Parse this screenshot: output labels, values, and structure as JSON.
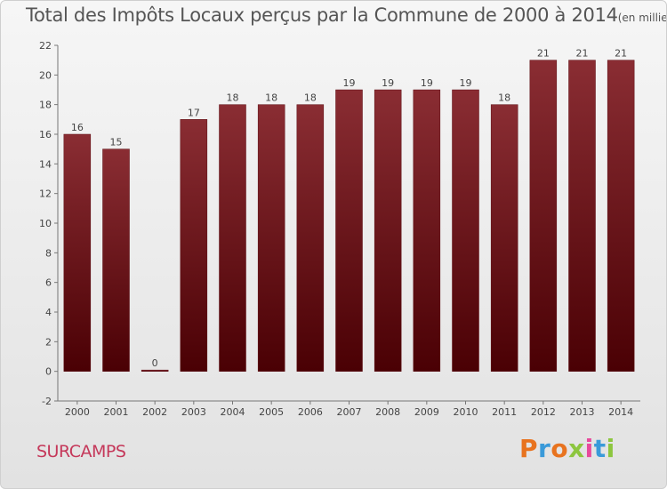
{
  "chart_data": {
    "type": "bar",
    "title": "Total des Impôts Locaux perçus par la Commune de 2000 à 2014",
    "unit": "(en milliers d'€)",
    "categories": [
      "2000",
      "2001",
      "2002",
      "2003",
      "2004",
      "2005",
      "2006",
      "2007",
      "2008",
      "2009",
      "2010",
      "2011",
      "2012",
      "2013",
      "2014"
    ],
    "values": [
      16,
      15,
      0,
      17,
      18,
      18,
      18,
      19,
      19,
      19,
      19,
      18,
      21,
      21,
      21
    ],
    "ylim": [
      -2,
      22
    ],
    "yticks": [
      -2,
      0,
      2,
      4,
      6,
      8,
      10,
      12,
      14,
      16,
      18,
      20,
      22
    ],
    "xlabel": "",
    "ylabel": "",
    "grid": false,
    "bar_color": "#7a1e24"
  },
  "footer": {
    "commune": "SURCAMPS",
    "brand": "Proxiti",
    "brand_colors": [
      "#e8731f",
      "#3a9ad9",
      "#e8731f",
      "#8dc63f",
      "#e84a9c",
      "#3a9ad9",
      "#8dc63f"
    ]
  }
}
